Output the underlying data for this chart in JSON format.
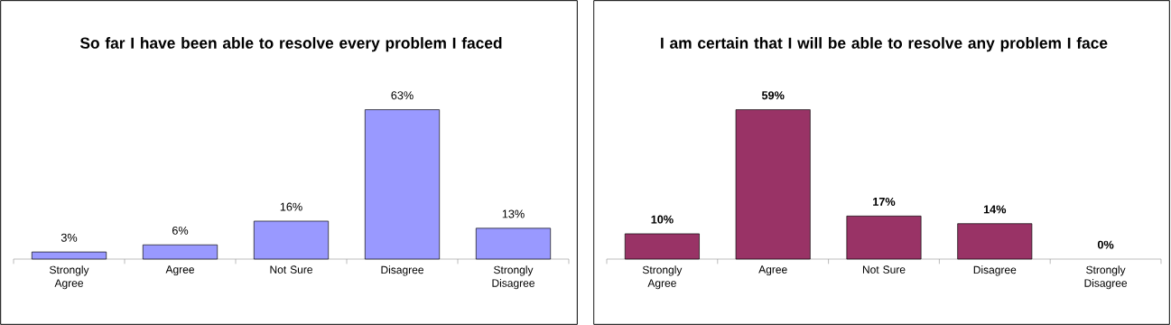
{
  "chart_data": [
    {
      "type": "bar",
      "title": "So far I have been able to resolve every problem I faced",
      "categories": [
        "Strongly Agree",
        "Agree",
        "Not Sure",
        "Disagree",
        "Strongly Disagree"
      ],
      "values": [
        3,
        6,
        16,
        63,
        13
      ],
      "value_labels": [
        "3%",
        "6%",
        "16%",
        "63%",
        "13%"
      ],
      "color": "#9999ff"
    },
    {
      "type": "bar",
      "title": "I am certain that I will be able to resolve any problem I face",
      "categories": [
        "Strongly Agree",
        "Agree",
        "Not Sure",
        "Disagree",
        "Strongly Disagree"
      ],
      "values": [
        10,
        59,
        17,
        14,
        0
      ],
      "value_labels": [
        "10%",
        "59%",
        "17%",
        "14%",
        "0%"
      ],
      "color": "#993366"
    }
  ]
}
